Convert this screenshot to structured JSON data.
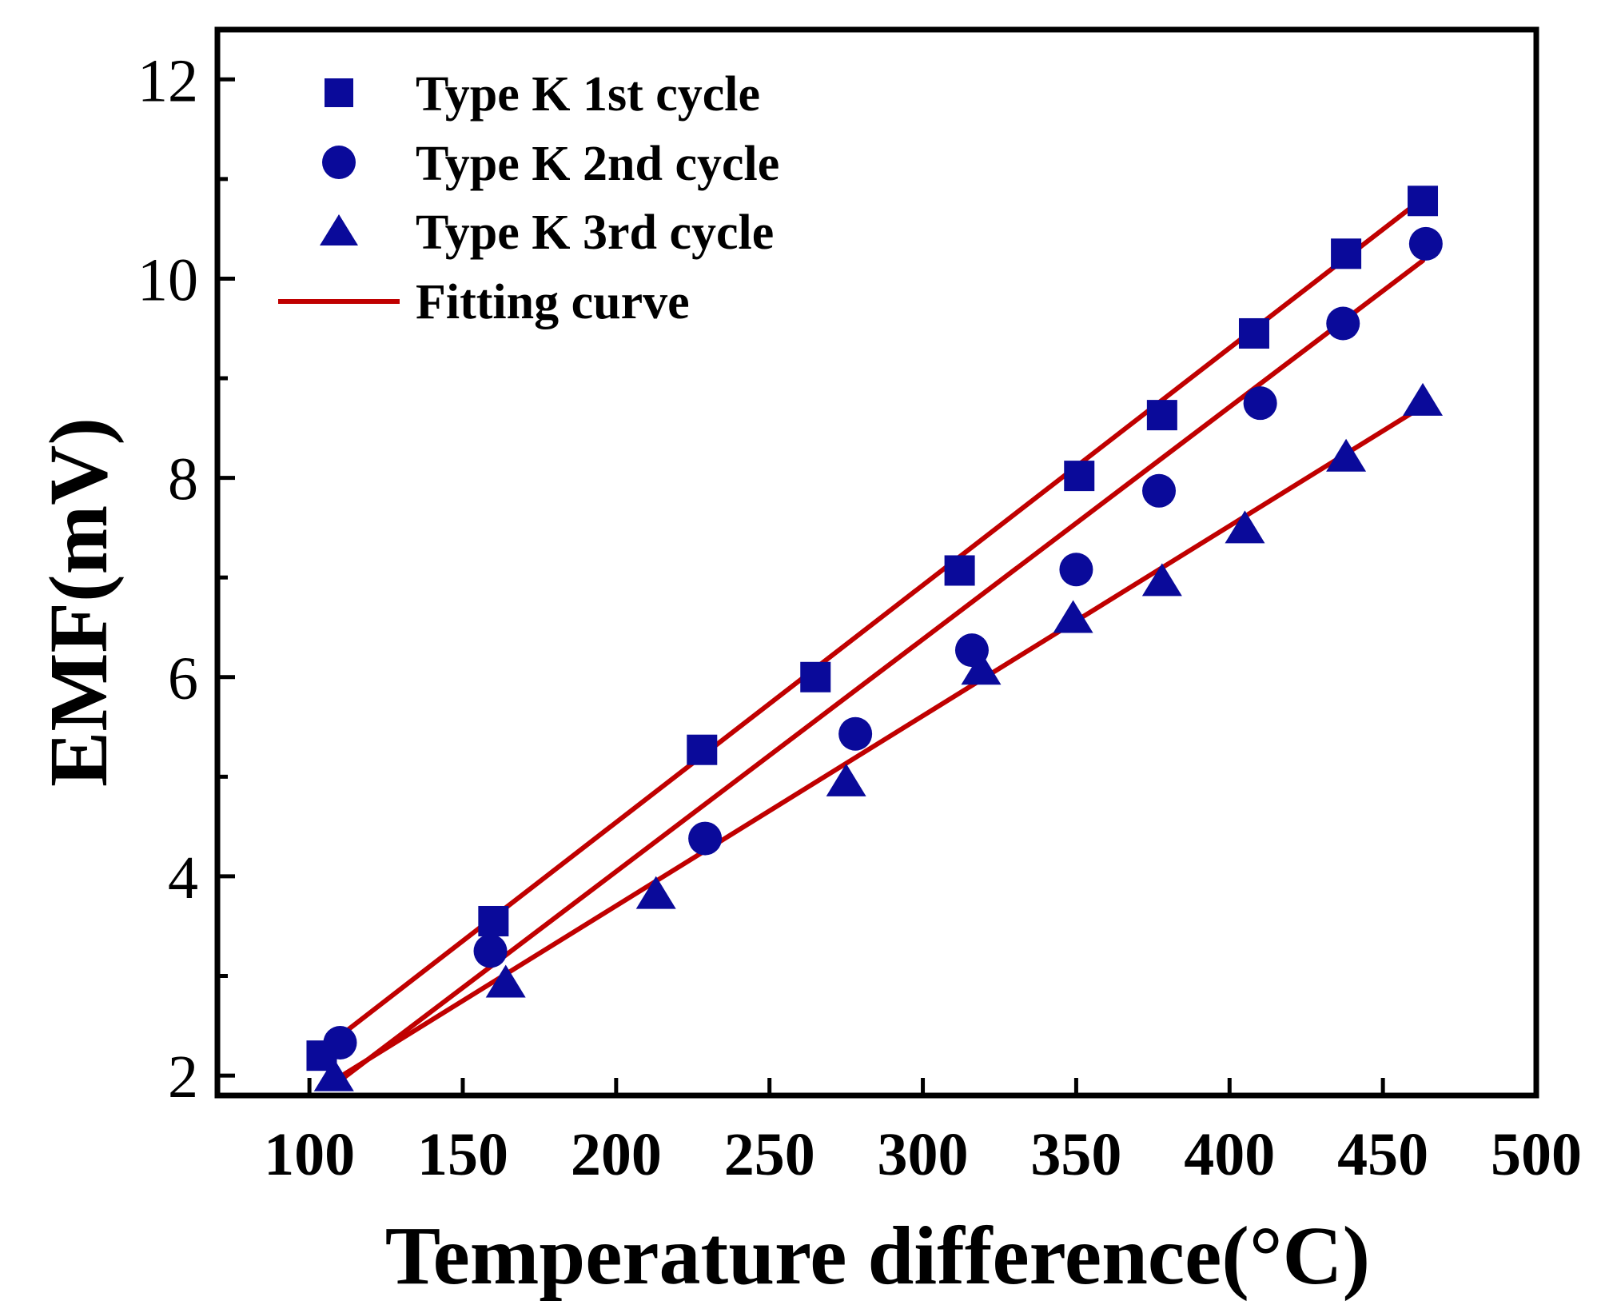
{
  "chart_data": {
    "type": "scatter",
    "title": "",
    "xlabel": "Temperature  difference(°C)",
    "ylabel": "EMF(mV)",
    "xlim": [
      70,
      500
    ],
    "ylim": [
      1.8,
      12.5
    ],
    "xticks": [
      100,
      150,
      200,
      250,
      300,
      350,
      400,
      450,
      500
    ],
    "xtick_labels": [
      "100",
      "150",
      "200",
      "250",
      "300",
      "350",
      "400",
      "450",
      "500"
    ],
    "yticks": [
      2,
      4,
      6,
      8,
      10,
      12
    ],
    "ytick_labels": [
      "2",
      "4",
      "6",
      "8",
      "10",
      "12"
    ],
    "y_minor_ticks": [
      3,
      5,
      7,
      9,
      11
    ],
    "legend_position": "top-left",
    "colors": {
      "marker": "#0a0a9a",
      "fit": "#c00000",
      "axis": "#000000"
    },
    "series": [
      {
        "name": "Type K 1st cycle",
        "marker": "square",
        "x": [
          104,
          160,
          228,
          265,
          312,
          351,
          378,
          408,
          438,
          463
        ],
        "y": [
          2.2,
          3.55,
          5.27,
          6.0,
          7.07,
          8.02,
          8.63,
          9.45,
          10.25,
          10.78
        ]
      },
      {
        "name": "Type K 2nd cycle",
        "marker": "circle",
        "x": [
          110,
          159,
          229,
          278,
          316,
          350,
          377,
          410,
          437,
          464
        ],
        "y": [
          2.33,
          3.25,
          4.38,
          5.43,
          6.27,
          7.08,
          7.87,
          8.75,
          9.55,
          10.35
        ]
      },
      {
        "name": "Type K 3rd cycle",
        "marker": "triangle",
        "x": [
          108,
          164,
          213,
          275,
          319,
          349,
          378,
          405,
          438,
          463
        ],
        "y": [
          1.98,
          2.92,
          3.81,
          4.94,
          6.06,
          6.58,
          6.95,
          7.48,
          8.2,
          8.76
        ]
      },
      {
        "name": "Fitting curve",
        "type": "line",
        "lines": [
          {
            "x": [
              105,
              462
            ],
            "y": [
              2.28,
              10.78
            ]
          },
          {
            "x": [
              110,
              463
            ],
            "y": [
              1.95,
              10.18
            ]
          },
          {
            "x": [
              108,
              462
            ],
            "y": [
              1.95,
              8.7
            ]
          }
        ]
      }
    ]
  }
}
